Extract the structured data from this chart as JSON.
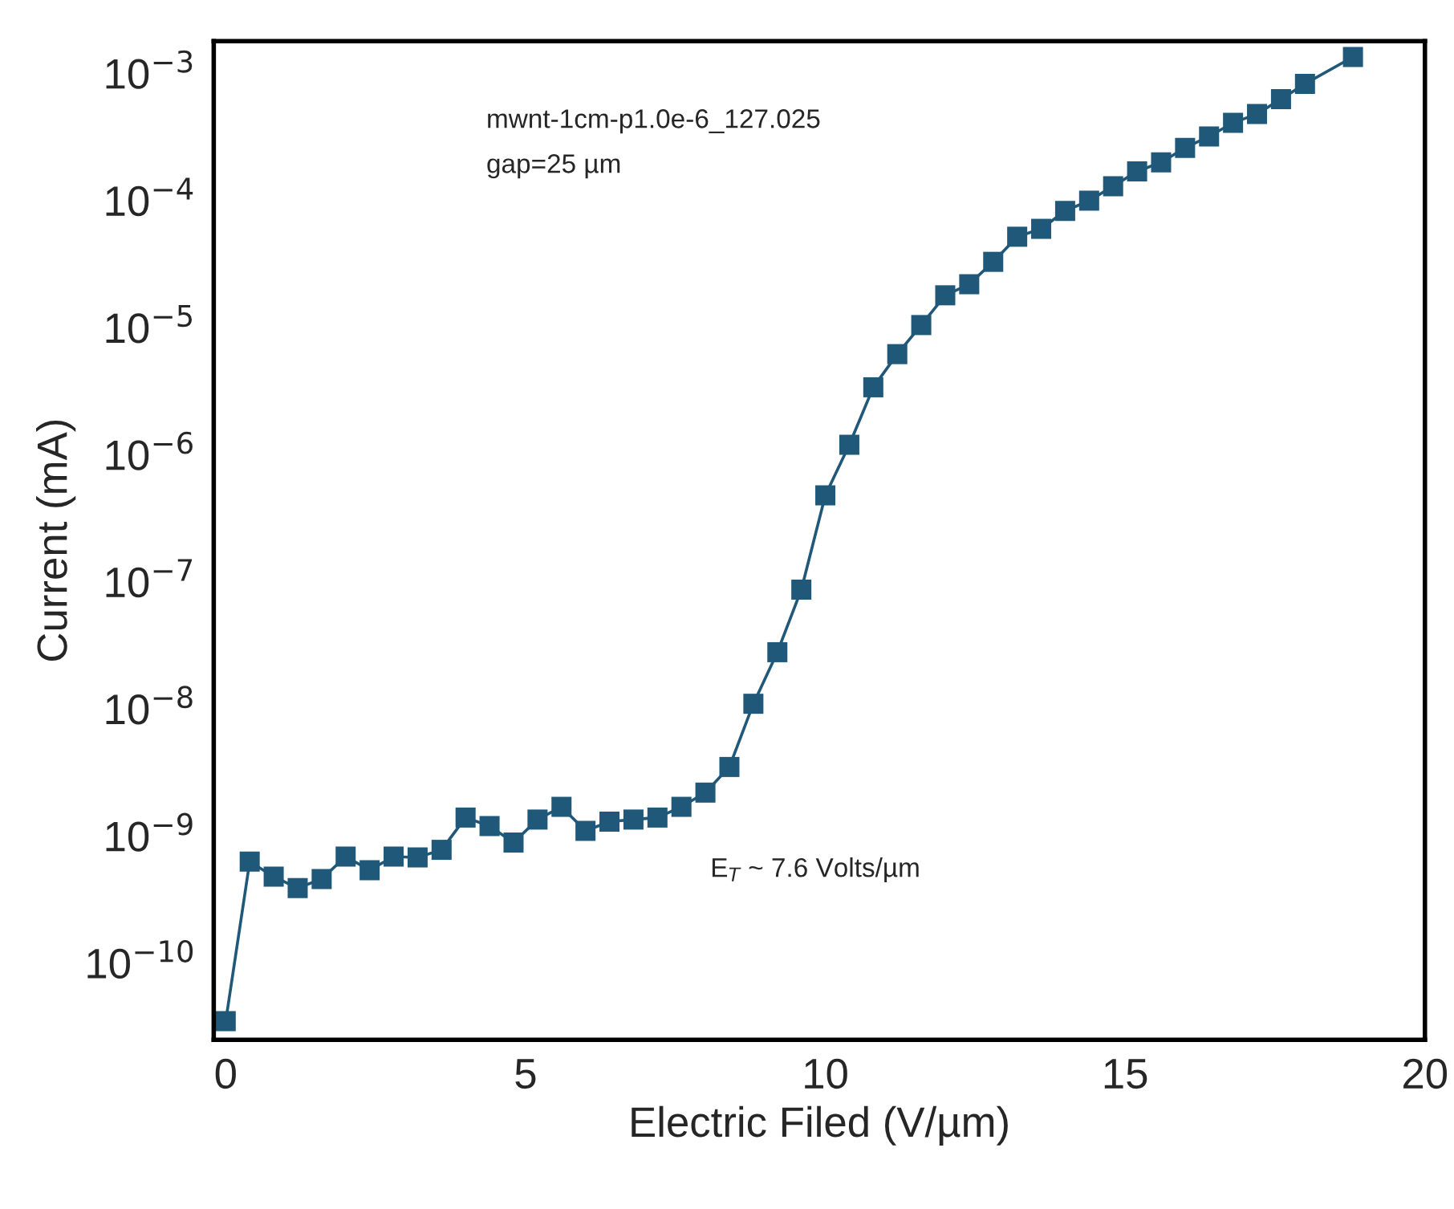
{
  "chart_data": {
    "type": "line",
    "xlabel": "Electric Filed (V/µm)",
    "ylabel": "Current (mA)",
    "annotations": [
      "mwnt-1cm-p1.0e-6_127.025",
      "gap=25 µm",
      "E$_{T}$ ~ 7.6 Volts/µm"
    ],
    "log": "y",
    "marker": "square",
    "line_style": "solid",
    "grid": false,
    "legend": false,
    "xlim": [
      -0.2,
      20
    ],
    "xticks": [
      0,
      5,
      10,
      15,
      20
    ],
    "ylim": [
      2.5e-11,
      0.0018
    ],
    "yticks": [
      {
        "value": 1e-10,
        "label": "10$^{−10}$"
      },
      {
        "value": 1e-09,
        "label": "10$^{−9}$"
      },
      {
        "value": 1e-08,
        "label": "10$^{−8}$"
      },
      {
        "value": 1e-07,
        "label": "10$^{−7}$"
      },
      {
        "value": 1e-06,
        "label": "10$^{−6}$"
      },
      {
        "value": 1e-05,
        "label": "10$^{−5}$"
      },
      {
        "value": 0.0001,
        "label": "10$^{−4}$"
      },
      {
        "value": 0.001,
        "label": "10$^{−3}$"
      }
    ],
    "x": [
      0,
      0.4,
      0.8,
      1.2,
      1.6,
      2.0,
      2.4,
      2.8,
      3.2,
      3.6,
      4.0,
      4.4,
      4.8,
      5.2,
      5.6,
      6.0,
      6.4,
      6.8,
      7.2,
      7.6,
      8.0,
      8.4,
      8.8,
      9.2,
      9.6,
      10.0,
      10.4,
      10.8,
      11.2,
      11.6,
      12.0,
      12.4,
      12.8,
      13.2,
      13.6,
      14.0,
      14.4,
      14.8,
      15.2,
      15.6,
      16.0,
      16.4,
      16.8,
      17.2,
      17.6,
      18.0,
      18.8
    ],
    "series": [
      {
        "color": "#1f5878",
        "values": [
          3.5e-11,
          6.3e-10,
          4.8e-10,
          3.9e-10,
          4.6e-10,
          6.9e-10,
          5.4e-10,
          6.9e-10,
          6.8e-10,
          7.8e-10,
          1.4e-09,
          1.2e-09,
          8.9e-10,
          1.35e-09,
          1.7e-09,
          1.1e-09,
          1.3e-09,
          1.35e-09,
          1.4e-09,
          1.7e-09,
          2.2e-09,
          3.5e-09,
          1.1e-08,
          2.8e-08,
          8.7e-08,
          4.8e-07,
          1.2e-06,
          3.4e-06,
          6.2e-06,
          1.05e-05,
          1.8e-05,
          2.2e-05,
          3.3e-05,
          5.2e-05,
          6e-05,
          8.3e-05,
          0.0001,
          0.00013,
          0.00017,
          0.0002,
          0.00026,
          0.00032,
          0.00041,
          0.00048,
          0.00063,
          0.00083,
          0.00135
        ]
      }
    ]
  }
}
